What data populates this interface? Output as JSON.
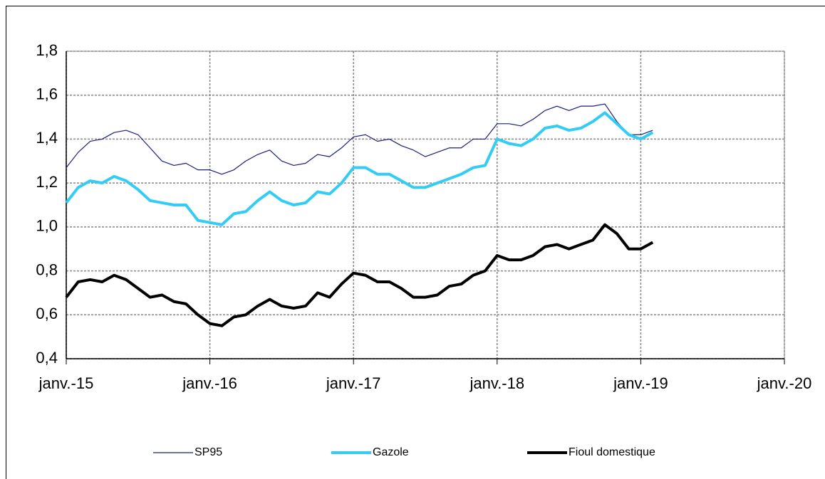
{
  "chart_data": {
    "type": "line",
    "x": [
      "2015-01",
      "2015-02",
      "2015-03",
      "2015-04",
      "2015-05",
      "2015-06",
      "2015-07",
      "2015-08",
      "2015-09",
      "2015-10",
      "2015-11",
      "2015-12",
      "2016-01",
      "2016-02",
      "2016-03",
      "2016-04",
      "2016-05",
      "2016-06",
      "2016-07",
      "2016-08",
      "2016-09",
      "2016-10",
      "2016-11",
      "2016-12",
      "2017-01",
      "2017-02",
      "2017-03",
      "2017-04",
      "2017-05",
      "2017-06",
      "2017-07",
      "2017-08",
      "2017-09",
      "2017-10",
      "2017-11",
      "2017-12",
      "2018-01",
      "2018-02",
      "2018-03",
      "2018-04",
      "2018-05",
      "2018-06",
      "2018-07",
      "2018-08",
      "2018-09",
      "2018-10",
      "2018-11",
      "2018-12",
      "2019-01",
      "2019-02"
    ],
    "series": [
      {
        "name": "SP95",
        "color": "#1a1f7a",
        "width": 1.2,
        "values": [
          1.27,
          1.34,
          1.39,
          1.4,
          1.43,
          1.44,
          1.42,
          1.36,
          1.3,
          1.28,
          1.29,
          1.26,
          1.26,
          1.24,
          1.26,
          1.3,
          1.33,
          1.35,
          1.3,
          1.28,
          1.29,
          1.33,
          1.32,
          1.36,
          1.41,
          1.42,
          1.39,
          1.4,
          1.37,
          1.35,
          1.32,
          1.34,
          1.36,
          1.36,
          1.4,
          1.4,
          1.47,
          1.47,
          1.46,
          1.49,
          1.53,
          1.55,
          1.53,
          1.55,
          1.55,
          1.56,
          1.48,
          1.42,
          1.42,
          1.44
        ]
      },
      {
        "name": "Gazole",
        "color": "#33ccf5",
        "width": 4,
        "values": [
          1.11,
          1.18,
          1.21,
          1.2,
          1.23,
          1.21,
          1.17,
          1.12,
          1.11,
          1.1,
          1.1,
          1.03,
          1.02,
          1.01,
          1.06,
          1.07,
          1.12,
          1.16,
          1.12,
          1.1,
          1.11,
          1.16,
          1.15,
          1.2,
          1.27,
          1.27,
          1.24,
          1.24,
          1.21,
          1.18,
          1.18,
          1.2,
          1.22,
          1.24,
          1.27,
          1.28,
          1.4,
          1.38,
          1.37,
          1.4,
          1.45,
          1.46,
          1.44,
          1.45,
          1.48,
          1.52,
          1.47,
          1.42,
          1.4,
          1.43
        ]
      },
      {
        "name": "Fioul domestique",
        "color": "#000000",
        "width": 4,
        "values": [
          0.68,
          0.75,
          0.76,
          0.75,
          0.78,
          0.76,
          0.72,
          0.68,
          0.69,
          0.66,
          0.65,
          0.6,
          0.56,
          0.55,
          0.59,
          0.6,
          0.64,
          0.67,
          0.64,
          0.63,
          0.64,
          0.7,
          0.68,
          0.74,
          0.79,
          0.78,
          0.75,
          0.75,
          0.72,
          0.68,
          0.68,
          0.69,
          0.73,
          0.74,
          0.78,
          0.8,
          0.87,
          0.85,
          0.85,
          0.87,
          0.91,
          0.92,
          0.9,
          0.92,
          0.94,
          1.01,
          0.97,
          0.9,
          0.9,
          0.93
        ]
      }
    ],
    "xlim": [
      "2015-01",
      "2020-01"
    ],
    "xticks": [
      {
        "value": "2015-01",
        "label": "janv.-15"
      },
      {
        "value": "2016-01",
        "label": "janv.-16"
      },
      {
        "value": "2017-01",
        "label": "janv.-17"
      },
      {
        "value": "2018-01",
        "label": "janv.-18"
      },
      {
        "value": "2019-01",
        "label": "janv.-19"
      },
      {
        "value": "2020-01",
        "label": "janv.-20"
      }
    ],
    "ylim": [
      0.4,
      1.8
    ],
    "yticks": [
      {
        "value": 0.4,
        "label": "0,4"
      },
      {
        "value": 0.6,
        "label": "0,6"
      },
      {
        "value": 0.8,
        "label": "0,8"
      },
      {
        "value": 1.0,
        "label": "1,0"
      },
      {
        "value": 1.2,
        "label": "1,2"
      },
      {
        "value": 1.4,
        "label": "1,4"
      },
      {
        "value": 1.6,
        "label": "1,6"
      },
      {
        "value": 1.8,
        "label": "1,8"
      }
    ],
    "grid": true,
    "legend": "bottom"
  }
}
